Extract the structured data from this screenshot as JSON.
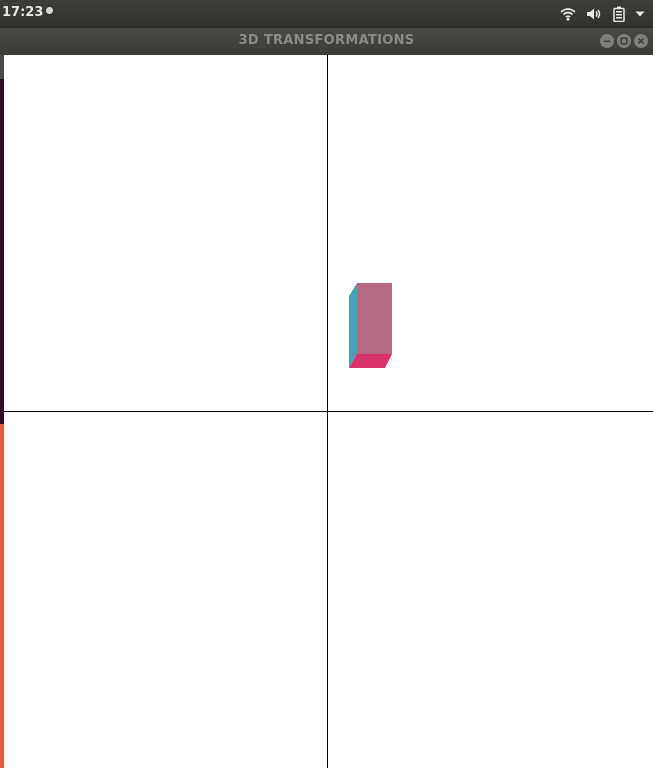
{
  "topbar": {
    "clock": "17:23",
    "icons": [
      "wifi-icon",
      "volume-icon",
      "battery-icon",
      "system-menu-chevron-icon"
    ]
  },
  "window": {
    "title": "3D TRANSFORMATIONS",
    "controls": [
      "minimize-icon",
      "maximize-icon",
      "close-icon"
    ]
  },
  "scene": {
    "object": "cuboid",
    "colors": {
      "front_face": "#b56a82",
      "side_face": "#4f9db6",
      "bottom_face": "#d8336c",
      "axes": "#000000",
      "background": "#ffffff"
    }
  }
}
